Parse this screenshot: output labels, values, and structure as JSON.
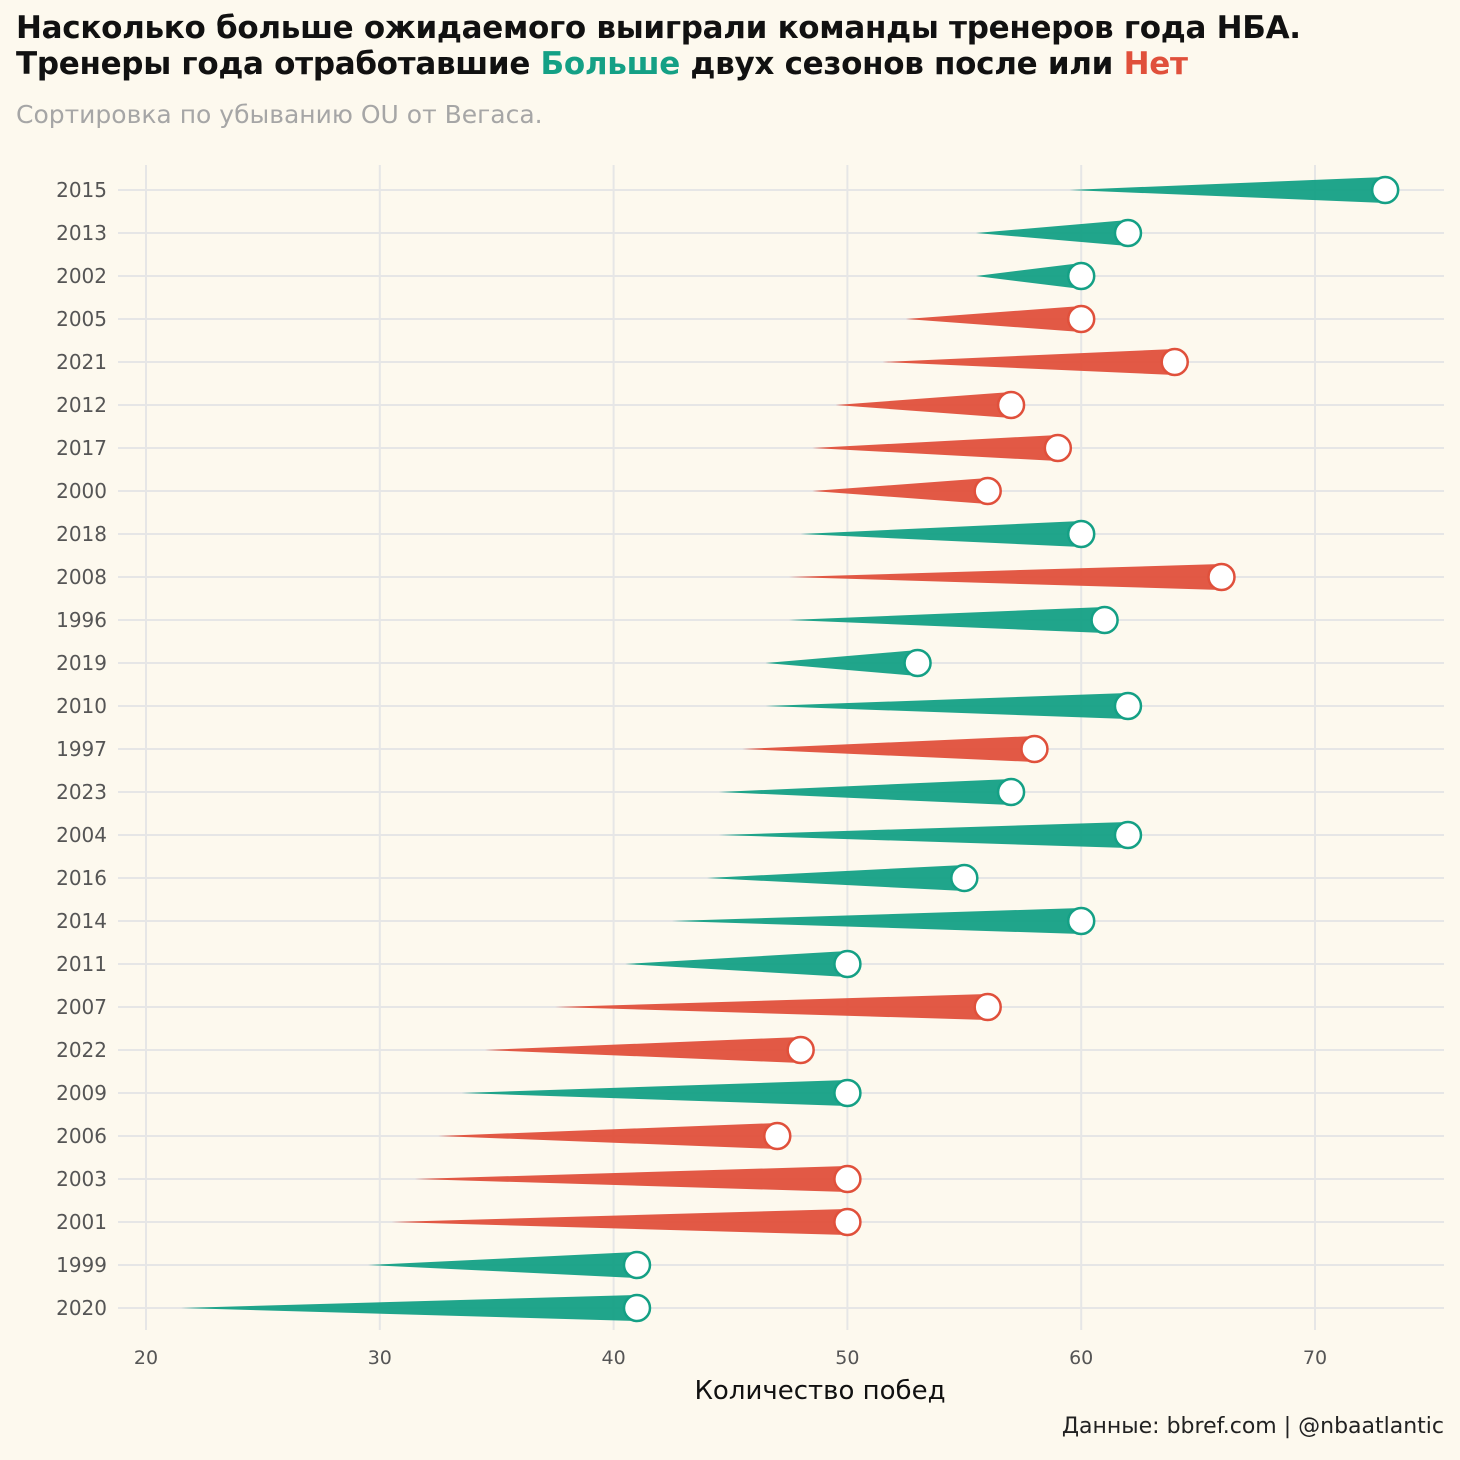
{
  "title": {
    "line1": "Насколько больше ожидаемого выиграли команды тренеров года НБА.",
    "line2_prefix": "Тренеры года отработавшие ",
    "line2_more": "Больше",
    "line2_middle": " двух сезонов после или ",
    "line2_no": "Нет"
  },
  "subtitle": "Сортировка по убыванию OU от Вегаса.",
  "caption": "Данные: bbref.com | @nbaatlantic",
  "colors": {
    "more": "#14a085",
    "no": "#e0503b",
    "background": "#fdf9ee",
    "grid": "#e6e6e6"
  },
  "chart_data": {
    "type": "bar",
    "style": "tapered wedge from Vegas over/under to actual wins, circle marker at actual wins",
    "xlabel": "Количество побед",
    "xlim": [
      20,
      75
    ],
    "xticks": [
      20,
      30,
      40,
      50,
      60,
      70
    ],
    "grid": true,
    "series": [
      {
        "name": "Больше",
        "color": "#14a085"
      },
      {
        "name": "Нет",
        "color": "#e0503b"
      }
    ],
    "rows": [
      {
        "year": "2015",
        "ou": 59.5,
        "wins": 73,
        "group": "Больше"
      },
      {
        "year": "2013",
        "ou": 55.5,
        "wins": 62,
        "group": "Больше"
      },
      {
        "year": "2002",
        "ou": 55.5,
        "wins": 60,
        "group": "Больше"
      },
      {
        "year": "2005",
        "ou": 52.5,
        "wins": 60,
        "group": "Нет"
      },
      {
        "year": "2021",
        "ou": 51.5,
        "wins": 64,
        "group": "Нет"
      },
      {
        "year": "2012",
        "ou": 49.5,
        "wins": 57,
        "group": "Нет"
      },
      {
        "year": "2017",
        "ou": 48.5,
        "wins": 59,
        "group": "Нет"
      },
      {
        "year": "2000",
        "ou": 48.5,
        "wins": 56,
        "group": "Нет"
      },
      {
        "year": "2018",
        "ou": 48,
        "wins": 60,
        "group": "Больше"
      },
      {
        "year": "2008",
        "ou": 47.5,
        "wins": 66,
        "group": "Нет"
      },
      {
        "year": "1996",
        "ou": 47.5,
        "wins": 61,
        "group": "Больше"
      },
      {
        "year": "2019",
        "ou": 46.5,
        "wins": 53,
        "group": "Больше"
      },
      {
        "year": "2010",
        "ou": 46.5,
        "wins": 62,
        "group": "Больше"
      },
      {
        "year": "1997",
        "ou": 45.5,
        "wins": 58,
        "group": "Нет"
      },
      {
        "year": "2023",
        "ou": 44.5,
        "wins": 57,
        "group": "Больше"
      },
      {
        "year": "2004",
        "ou": 44.5,
        "wins": 62,
        "group": "Больше"
      },
      {
        "year": "2016",
        "ou": 44,
        "wins": 55,
        "group": "Больше"
      },
      {
        "year": "2014",
        "ou": 42.5,
        "wins": 60,
        "group": "Больше"
      },
      {
        "year": "2011",
        "ou": 40.5,
        "wins": 50,
        "group": "Больше"
      },
      {
        "year": "2007",
        "ou": 37.5,
        "wins": 56,
        "group": "Нет"
      },
      {
        "year": "2022",
        "ou": 34.5,
        "wins": 48,
        "group": "Нет"
      },
      {
        "year": "2009",
        "ou": 33.5,
        "wins": 50,
        "group": "Больше"
      },
      {
        "year": "2006",
        "ou": 32.5,
        "wins": 47,
        "group": "Нет"
      },
      {
        "year": "2003",
        "ou": 31.5,
        "wins": 50,
        "group": "Нет"
      },
      {
        "year": "2001",
        "ou": 30.5,
        "wins": 50,
        "group": "Нет"
      },
      {
        "year": "1999",
        "ou": 29.5,
        "wins": 41,
        "group": "Больше"
      },
      {
        "year": "2020",
        "ou": 21.5,
        "wins": 41,
        "group": "Больше"
      }
    ]
  }
}
